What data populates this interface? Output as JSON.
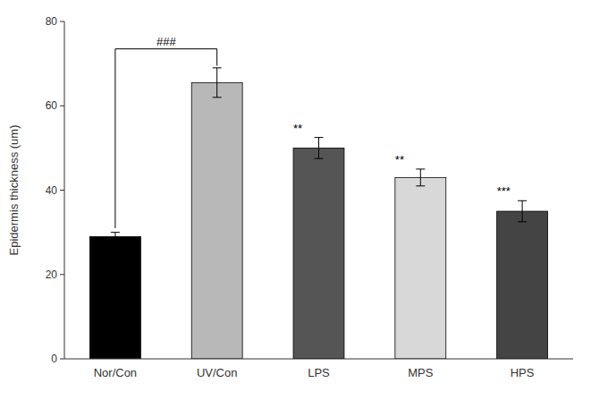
{
  "chart_data": {
    "type": "bar",
    "categories": [
      "Nor/Con",
      "UV/Con",
      "LPS",
      "MPS",
      "HPS"
    ],
    "values": [
      29.0,
      65.5,
      50.0,
      43.0,
      35.0
    ],
    "errors": [
      1.0,
      3.5,
      2.5,
      2.0,
      2.5
    ],
    "colors": [
      "#000000",
      "#b8b8b8",
      "#555555",
      "#d8d8d8",
      "#444444"
    ],
    "ylabel": "Epidermis thickness (um)",
    "ylim": [
      0,
      80
    ],
    "yticks": [
      0,
      20,
      40,
      60,
      80
    ],
    "grid": false,
    "significance_labels": [
      null,
      null,
      "**",
      "**",
      "***"
    ],
    "bracket": {
      "from": "Nor/Con",
      "to": "UV/Con",
      "top": 73.5,
      "drop_from": 31.0,
      "drop_to": 69.5,
      "label": "###"
    }
  }
}
